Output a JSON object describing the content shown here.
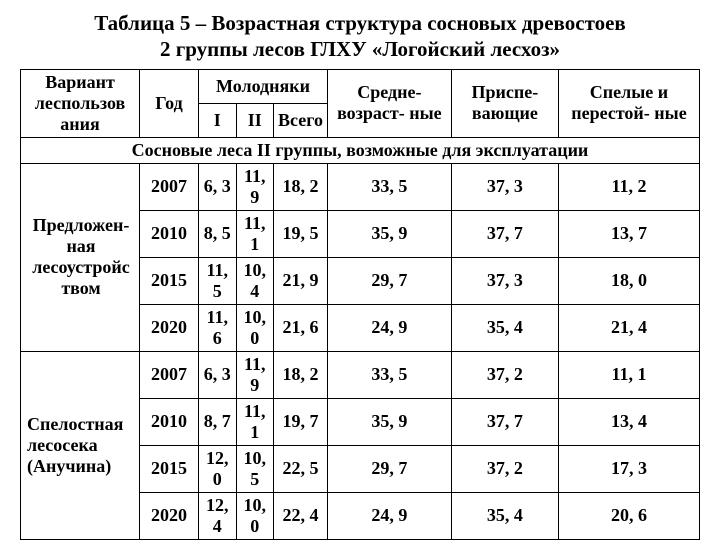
{
  "title_line1": "Таблица 5 – Возрастная структура сосновых древостоев",
  "title_line2": "2 группы лесов ГЛХУ «Логойский лесхоз»",
  "headers": {
    "variant": "Вариант леспользов ания",
    "year": "Год",
    "young": "Молодняки",
    "young_i": "I",
    "young_ii": "II",
    "young_total": "Всего",
    "mid": "Средне- возраст- ные",
    "ripening": "Приспе- вающие",
    "ripe": "Спелые и перестой- ные"
  },
  "section": "Сосновые леса II группы, возможные для эксплуатации",
  "groups": [
    {
      "label": "Предложен-ная лесоустройс твом",
      "rows": [
        {
          "year": "2007",
          "i": "6, 3",
          "ii": "11, 9",
          "total": "18, 2",
          "mid": "33, 5",
          "ripening": "37, 3",
          "ripe": "11, 2"
        },
        {
          "year": "2010",
          "i": "8, 5",
          "ii": "11, 1",
          "total": "19, 5",
          "mid": "35, 9",
          "ripening": "37, 7",
          "ripe": "13, 7"
        },
        {
          "year": "2015",
          "i": "11, 5",
          "ii": "10, 4",
          "total": "21, 9",
          "mid": "29, 7",
          "ripening": "37, 3",
          "ripe": "18, 0"
        },
        {
          "year": "2020",
          "i": "11, 6",
          "ii": "10, 0",
          "total": "21, 6",
          "mid": "24, 9",
          "ripening": "35, 4",
          "ripe": "21, 4"
        }
      ]
    },
    {
      "label": "Спелостная лесосека (Анучина)",
      "rows": [
        {
          "year": "2007",
          "i": "6, 3",
          "ii": "11, 9",
          "total": "18, 2",
          "mid": "33, 5",
          "ripening": "37, 2",
          "ripe": "11, 1"
        },
        {
          "year": "2010",
          "i": "8, 7",
          "ii": "11, 1",
          "total": "19, 7",
          "mid": "35, 9",
          "ripening": "37, 7",
          "ripe": "13, 4"
        },
        {
          "year": "2015",
          "i": "12, 0",
          "ii": "10, 5",
          "total": "22, 5",
          "mid": "29, 7",
          "ripening": "37, 2",
          "ripe": "17, 3"
        },
        {
          "year": "2020",
          "i": "12, 4",
          "ii": "10, 0",
          "total": "22, 4",
          "mid": "24, 9",
          "ripening": "35, 4",
          "ripe": "20, 6"
        }
      ]
    }
  ]
}
